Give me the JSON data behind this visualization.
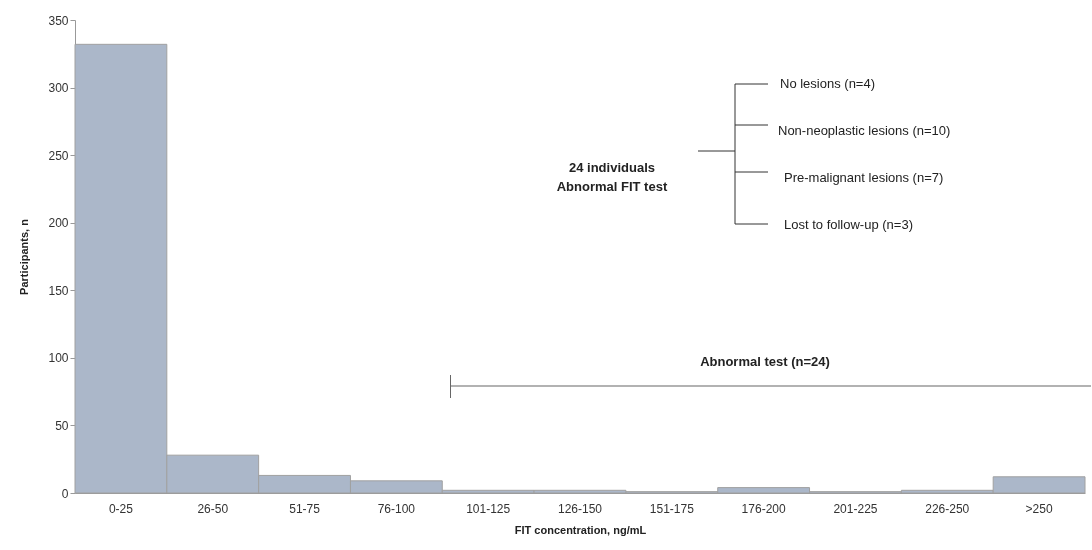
{
  "chart_data": {
    "type": "bar",
    "xlabel": "FIT concentration, ng/mL",
    "ylabel": "Participants, n",
    "categories": [
      "0-25",
      "26-50",
      "51-75",
      "76-100",
      "101-125",
      "126-150",
      "151-175",
      "176-200",
      "201-225",
      "226-250",
      ">250"
    ],
    "values": [
      332,
      28,
      13,
      9,
      2,
      2,
      1,
      4,
      1,
      2,
      12
    ],
    "color": "#abb7c9",
    "ylim": [
      0,
      350
    ],
    "yticks": [
      0,
      50,
      100,
      150,
      200,
      250,
      300,
      350
    ],
    "grid": false,
    "annotations": [
      "Abnormal test (n=24)",
      "24 individuals",
      "Abnormal FIT test",
      "No lesions (n=4)",
      "Non-neoplastic lesions (n=10)",
      "Pre-malignant lesions (n=7)",
      "Lost to follow-up (n=3)"
    ]
  }
}
